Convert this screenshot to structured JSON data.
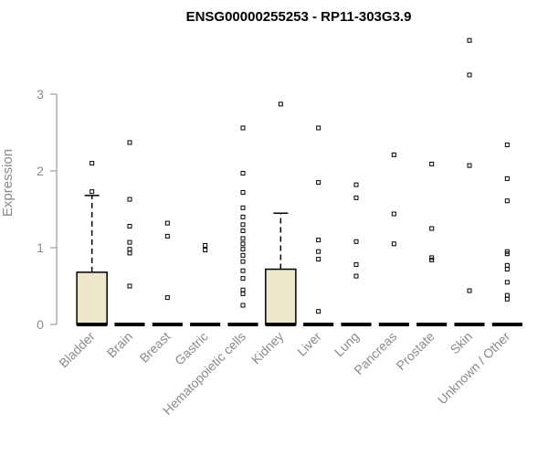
{
  "chart_data": {
    "type": "boxplot",
    "title": "ENSG00000255253 - RP11-303G3.9",
    "xlabel": "",
    "ylabel": "Expression",
    "ylim": [
      0,
      3.75
    ],
    "yticks": [
      0,
      1,
      2,
      3
    ],
    "grid": false,
    "colors": {
      "box_fill": "#ede7cc",
      "box_stroke": "#000000",
      "axis": "#8a8a8a",
      "outlier": "#000000"
    },
    "categories": [
      "Bladder",
      "Brain",
      "Breast",
      "Gastric",
      "Hematopoietic cells",
      "Kidney",
      "Liver",
      "Lung",
      "Pancreas",
      "Prostate",
      "Skin",
      "Unknown / Other"
    ],
    "boxes": [
      {
        "category": "Bladder",
        "min": 0,
        "q1": 0,
        "median": 0,
        "q3": 0.68,
        "max": 1.68,
        "outliers": [
          1.73,
          2.1
        ]
      },
      {
        "category": "Brain",
        "min": 0,
        "q1": 0,
        "median": 0,
        "q3": 0,
        "max": 0,
        "outliers": [
          2.37,
          1.63,
          1.28,
          1.07,
          0.98,
          0.93,
          0.5
        ]
      },
      {
        "category": "Breast",
        "min": 0,
        "q1": 0,
        "median": 0,
        "q3": 0,
        "max": 0,
        "outliers": [
          1.32,
          1.15,
          0.35
        ]
      },
      {
        "category": "Gastric",
        "min": 0,
        "q1": 0,
        "median": 0,
        "q3": 0,
        "max": 0,
        "outliers": [
          1.03,
          0.97
        ]
      },
      {
        "category": "Hematopoietic cells",
        "min": 0,
        "q1": 0,
        "median": 0,
        "q3": 0,
        "max": 0,
        "outliers": [
          2.56,
          1.97,
          1.72,
          1.52,
          1.4,
          1.3,
          1.22,
          1.12,
          1.05,
          0.98,
          0.9,
          0.82,
          0.7,
          0.6,
          0.45,
          0.4,
          0.25
        ]
      },
      {
        "category": "Kidney",
        "min": 0,
        "q1": 0,
        "median": 0,
        "q3": 0.72,
        "max": 1.45,
        "outliers": [
          2.87
        ]
      },
      {
        "category": "Liver",
        "min": 0,
        "q1": 0,
        "median": 0,
        "q3": 0,
        "max": 0,
        "outliers": [
          2.56,
          1.85,
          1.1,
          0.95,
          0.85,
          0.17
        ]
      },
      {
        "category": "Lung",
        "min": 0,
        "q1": 0,
        "median": 0,
        "q3": 0,
        "max": 0,
        "outliers": [
          1.82,
          1.65,
          1.08,
          0.78,
          0.63
        ]
      },
      {
        "category": "Pancreas",
        "min": 0,
        "q1": 0,
        "median": 0,
        "q3": 0,
        "max": 0,
        "outliers": [
          2.21,
          1.44,
          1.05
        ]
      },
      {
        "category": "Prostate",
        "min": 0,
        "q1": 0,
        "median": 0,
        "q3": 0,
        "max": 0,
        "outliers": [
          2.09,
          1.25,
          0.87,
          0.84
        ]
      },
      {
        "category": "Skin",
        "min": 0,
        "q1": 0,
        "median": 0,
        "q3": 0,
        "max": 0,
        "outliers": [
          3.7,
          3.25,
          2.07,
          0.44
        ]
      },
      {
        "category": "Unknown / Other",
        "min": 0,
        "q1": 0,
        "median": 0,
        "q3": 0,
        "max": 0,
        "outliers": [
          2.34,
          1.9,
          1.61,
          0.95,
          0.92,
          0.77,
          0.72,
          0.55,
          0.38,
          0.33
        ]
      }
    ]
  }
}
